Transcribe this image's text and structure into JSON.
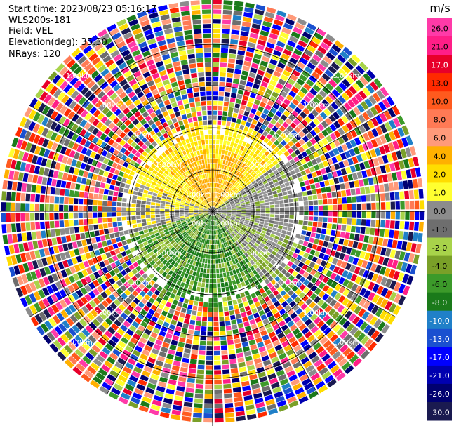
{
  "header": {
    "start_time": "Start time: 2023/08/23 05:16:17",
    "instrument": "WLS200s-181",
    "field": "Field: VEL",
    "elevation": "Elevation(deg): 35.30",
    "nrays": "NRays: 120"
  },
  "chart_data": {
    "type": "heatmap",
    "projection": "polar",
    "title": "",
    "unit": "m/s",
    "n_rays": 120,
    "range_ring_label": "1.00km",
    "range_rings": 4,
    "colorbar": {
      "ticks": [
        "26.0",
        "21.0",
        "17.0",
        "13.0",
        "10.0",
        "8.0",
        "6.0",
        "4.0",
        "2.0",
        "1.0",
        "0.0",
        "-1.0",
        "-2.0",
        "-4.0",
        "-6.0",
        "-8.0",
        "-10.0",
        "-13.0",
        "-17.0",
        "-21.0",
        "-26.0",
        "-30.0"
      ],
      "colors": [
        "#ff3aa8",
        "#ff1e87",
        "#e8002a",
        "#ff2a00",
        "#ff5a1e",
        "#ff7a55",
        "#ff9a7a",
        "#ffb000",
        "#ffdd00",
        "#ffff30",
        "#8c8c8c",
        "#6e6e6e",
        "#a8d34a",
        "#7aa028",
        "#3c9a2a",
        "#1a7a1a",
        "#2080c8",
        "#1a50d0",
        "#0000ff",
        "#0000b0",
        "#000070",
        "#1a1a50"
      ]
    },
    "velocity_pattern": {
      "near_field": "yellow/orange positive velocities north, gray near zero east, green negative velocities south",
      "far_field": "noise with random colors"
    }
  }
}
